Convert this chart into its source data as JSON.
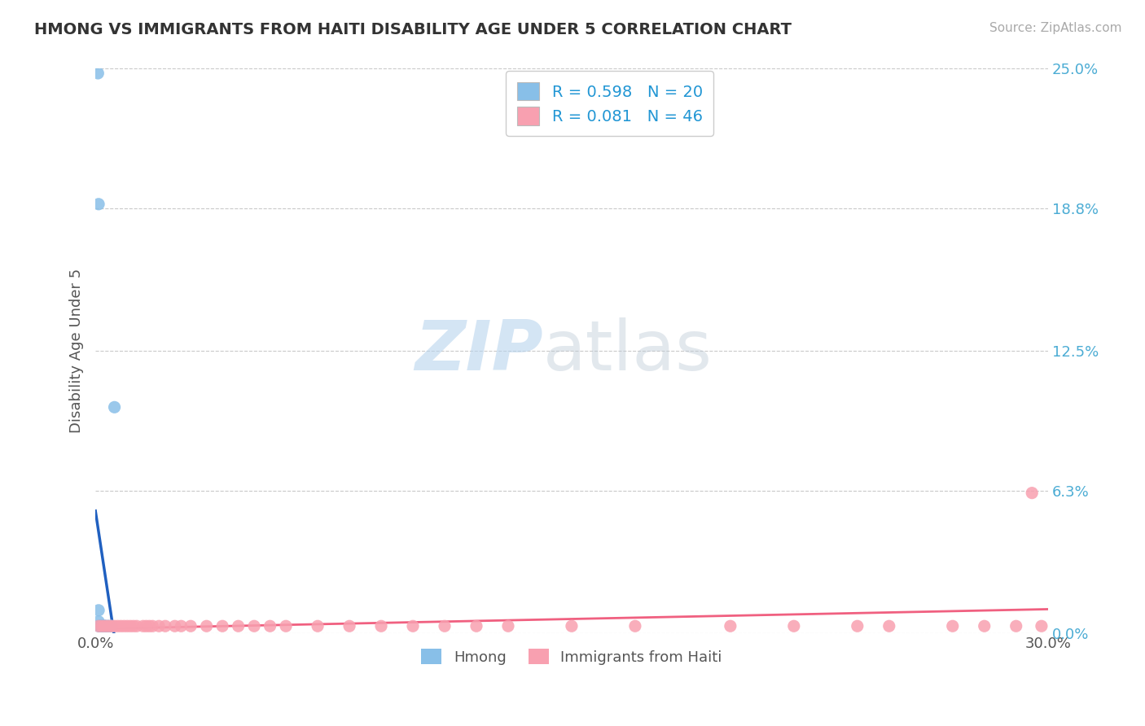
{
  "title": "HMONG VS IMMIGRANTS FROM HAITI DISABILITY AGE UNDER 5 CORRELATION CHART",
  "source": "Source: ZipAtlas.com",
  "ylabel": "Disability Age Under 5",
  "xlim": [
    0.0,
    0.3
  ],
  "ylim": [
    0.0,
    0.25
  ],
  "xticks": [
    0.0,
    0.3
  ],
  "xticklabels": [
    "0.0%",
    "30.0%"
  ],
  "yticks": [
    0.0,
    0.063,
    0.125,
    0.188,
    0.25
  ],
  "yticklabels": [
    "0.0%",
    "6.3%",
    "12.5%",
    "18.8%",
    "25.0%"
  ],
  "hmong_color": "#88bfe8",
  "haiti_color": "#f8a0b0",
  "hmong_line_color": "#2060c0",
  "hmong_dash_color": "#88bfe8",
  "haiti_line_color": "#f06080",
  "hmong_R": 0.598,
  "hmong_N": 20,
  "haiti_R": 0.081,
  "haiti_N": 46,
  "background_color": "#ffffff",
  "grid_color": "#bbbbbb",
  "title_color": "#333333",
  "legend_label1": "Hmong",
  "legend_label2": "Immigrants from Haiti",
  "watermark_zip": "ZIP",
  "watermark_atlas": "atlas",
  "hmong_x": [
    0.0008,
    0.001,
    0.001,
    0.001,
    0.001,
    0.0015,
    0.0015,
    0.002,
    0.002,
    0.002,
    0.002,
    0.003,
    0.003,
    0.003,
    0.003,
    0.004,
    0.004,
    0.005,
    0.005,
    0.006
  ],
  "hmong_y": [
    0.248,
    0.19,
    0.01,
    0.005,
    0.003,
    0.003,
    0.003,
    0.003,
    0.003,
    0.003,
    0.003,
    0.003,
    0.003,
    0.003,
    0.003,
    0.003,
    0.003,
    0.003,
    0.003,
    0.1
  ],
  "haiti_x": [
    0.001,
    0.002,
    0.003,
    0.004,
    0.005,
    0.006,
    0.007,
    0.008,
    0.009,
    0.01,
    0.011,
    0.012,
    0.013,
    0.015,
    0.016,
    0.017,
    0.018,
    0.02,
    0.022,
    0.025,
    0.027,
    0.03,
    0.035,
    0.04,
    0.045,
    0.05,
    0.055,
    0.06,
    0.07,
    0.08,
    0.09,
    0.1,
    0.11,
    0.12,
    0.13,
    0.15,
    0.17,
    0.2,
    0.22,
    0.24,
    0.25,
    0.27,
    0.28,
    0.29,
    0.295,
    0.298
  ],
  "haiti_y": [
    0.003,
    0.003,
    0.003,
    0.003,
    0.003,
    0.003,
    0.003,
    0.003,
    0.003,
    0.003,
    0.003,
    0.003,
    0.003,
    0.003,
    0.003,
    0.003,
    0.003,
    0.003,
    0.003,
    0.003,
    0.003,
    0.003,
    0.003,
    0.003,
    0.003,
    0.003,
    0.003,
    0.003,
    0.003,
    0.003,
    0.003,
    0.003,
    0.003,
    0.003,
    0.003,
    0.003,
    0.003,
    0.003,
    0.003,
    0.003,
    0.003,
    0.003,
    0.003,
    0.003,
    0.062,
    0.003
  ]
}
